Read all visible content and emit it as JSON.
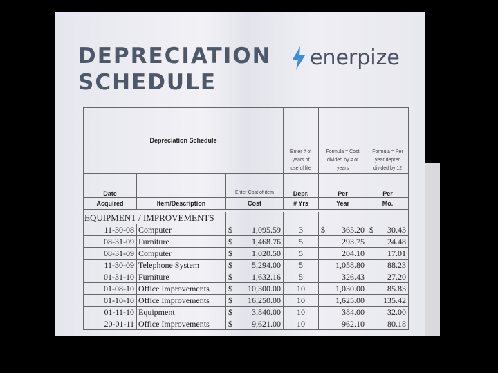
{
  "title_line1": "DEPRECIATION",
  "title_line2": "SCHEDULE",
  "logo": {
    "text": "enerpize",
    "color": "#3b8fd9"
  },
  "header": {
    "main": "Depreciation Schedule",
    "years_note": "Enter # of years of useful life",
    "per_year_note": "Formula = Cost divided by # of years",
    "per_mo_note": "Formula = Per year deprec divided by 12",
    "cost_note": "Enter Cost of item",
    "date_top": "Date",
    "date_bottom": "Acquired",
    "item": "Item/Description",
    "cost": "Cost",
    "depr_top": "Depr.",
    "depr_bottom": "# Yrs",
    "per_year_top": "Per",
    "per_year_bottom": "Year",
    "per_mo_top": "Per",
    "per_mo_bottom": "Mo."
  },
  "section": "EQUIPMENT / IMPROVEMENTS",
  "rows": [
    {
      "date": "11-30-08",
      "item": "Computer",
      "cur": "$",
      "cost": "1,095.59",
      "yrs": "3",
      "py_cur": "$",
      "per_year": "365.20",
      "pm_cur": "$",
      "per_mo": "30.43"
    },
    {
      "date": "08-31-09",
      "item": "Furniture",
      "cur": "$",
      "cost": "1,468.76",
      "yrs": "5",
      "py_cur": "",
      "per_year": "293.75",
      "pm_cur": "",
      "per_mo": "24.48"
    },
    {
      "date": "08-31-09",
      "item": "Computer",
      "cur": "$",
      "cost": "1,020.50",
      "yrs": "5",
      "py_cur": "",
      "per_year": "204.10",
      "pm_cur": "",
      "per_mo": "17.01"
    },
    {
      "date": "11-30-09",
      "item": "Telephone System",
      "cur": "$",
      "cost": "5,294.00",
      "yrs": "5",
      "py_cur": "",
      "per_year": "1,058.80",
      "pm_cur": "",
      "per_mo": "88.23"
    },
    {
      "date": "01-31-10",
      "item": "Furniture",
      "cur": "$",
      "cost": "1,632.16",
      "yrs": "5",
      "py_cur": "",
      "per_year": "326.43",
      "pm_cur": "",
      "per_mo": "27.20"
    },
    {
      "date": "01-08-10",
      "item": "Office Improvements",
      "cur": "$",
      "cost": "10,300.00",
      "yrs": "10",
      "py_cur": "",
      "per_year": "1,030.00",
      "pm_cur": "",
      "per_mo": "85.83"
    },
    {
      "date": "01-10-10",
      "item": "Office Improvements",
      "cur": "$",
      "cost": "16,250.00",
      "yrs": "10",
      "py_cur": "",
      "per_year": "1,625.00",
      "pm_cur": "",
      "per_mo": "135.42"
    },
    {
      "date": "01-11-10",
      "item": "Equipment",
      "cur": "$",
      "cost": "3,840.00",
      "yrs": "10",
      "py_cur": "",
      "per_year": "384.00",
      "pm_cur": "",
      "per_mo": "32.00"
    },
    {
      "date": "20-01-11",
      "item": "Office Improvements",
      "cur": "$",
      "cost": "9,621.00",
      "yrs": "10",
      "py_cur": "",
      "per_year": "962.10",
      "pm_cur": "",
      "per_mo": "80.18"
    }
  ]
}
